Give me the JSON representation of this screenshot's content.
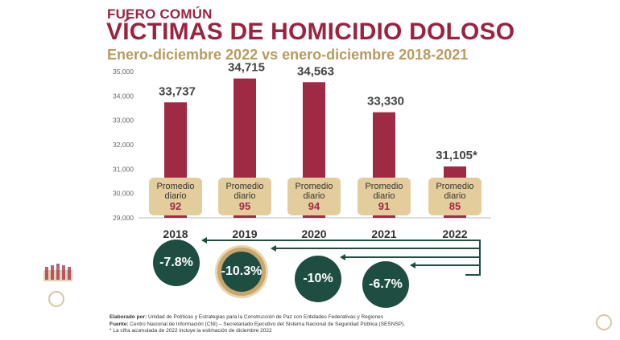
{
  "header": {
    "kicker": "FUERO COMÚN",
    "title": "VÍCTIMAS DE HOMICIDIO DOLOSO",
    "subtitle": "Enero-diciembre 2022 vs enero-diciembre 2018-2021"
  },
  "colors": {
    "bar": "#9e2a44",
    "title": "#9b2340",
    "subtitle": "#b89b5e",
    "label_box": "#e4cd9d",
    "circle": "#1e4d42",
    "arrow": "#1e4d42"
  },
  "chart_data": {
    "type": "bar",
    "categories": [
      "2018",
      "2019",
      "2020",
      "2021",
      "2022"
    ],
    "values": [
      33737,
      34715,
      34563,
      33330,
      31105
    ],
    "value_labels": [
      "33,737",
      "34,715",
      "34,563",
      "33,330",
      "31,105*"
    ],
    "ylim": [
      29000,
      35000
    ],
    "yticks": [
      "29,000",
      "30,000",
      "31,000",
      "32,000",
      "33,000",
      "34,000",
      "35,000"
    ],
    "ytick_values": [
      29000,
      30000,
      31000,
      32000,
      33000,
      34000,
      35000
    ],
    "daily_average_label": [
      "Promedio",
      "diario"
    ],
    "daily_averages": [
      "92",
      "95",
      "94",
      "91",
      "85"
    ],
    "comparisons": [
      {
        "vs": "2018",
        "change": "-7.8%",
        "highlight": false
      },
      {
        "vs": "2019",
        "change": "-10.3%",
        "highlight": true
      },
      {
        "vs": "2020",
        "change": "-10%",
        "highlight": false
      },
      {
        "vs": "2021",
        "change": "-6.7%",
        "highlight": false
      }
    ],
    "grid": false
  },
  "footer": {
    "elaborado_label": "Elaborado por:",
    "elaborado_text": " Unidad de Políticas y Estrategias para la Construcción de Paz con Entidades Federativas y Regiones",
    "fuente_label": "Fuente:",
    "fuente_text": " Centro Nacional de Información (CNI) – Secretariado Ejecutivo del Sistema Nacional de Seguridad Pública (SESNSP).",
    "note": "* La cifra acumulada de 2022 incluye la estimación de diciembre 2022"
  }
}
